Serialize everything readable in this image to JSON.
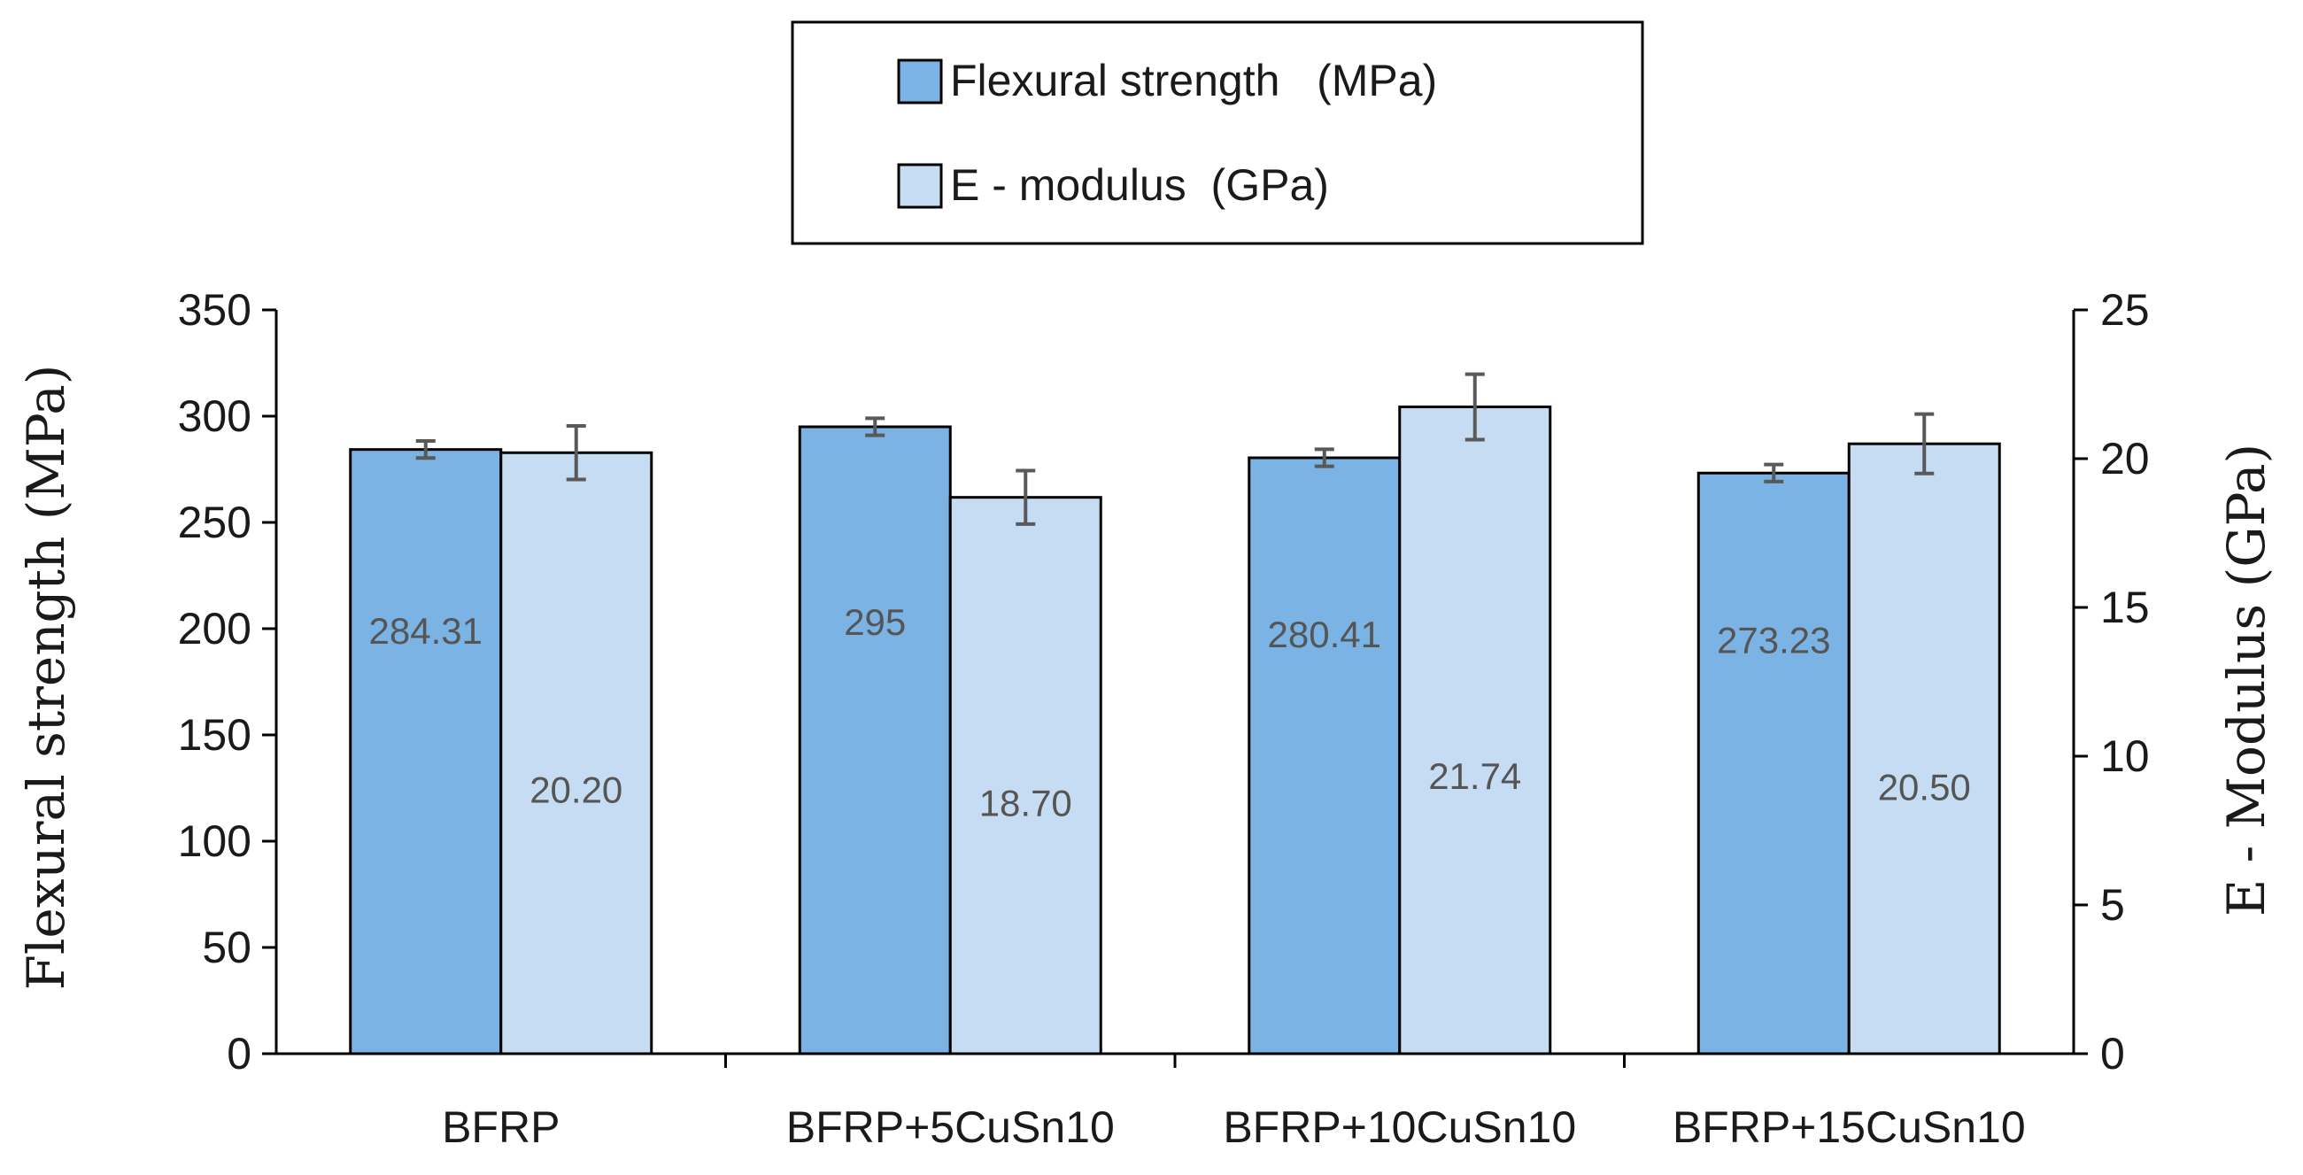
{
  "chart_data": {
    "type": "bar",
    "categories": [
      "BFRP",
      "BFRP+5CuSn10",
      "BFRP+10CuSn10",
      "BFRP+15CuSn10"
    ],
    "series": [
      {
        "name": "Flexural strength   (MPa)",
        "axis": "left",
        "color": "#7ab3e4",
        "values": [
          284.31,
          295,
          280.41,
          273.23
        ],
        "labels": [
          "284.31",
          "295",
          "280.41",
          "273.23"
        ],
        "errors": [
          4,
          4,
          4,
          4
        ]
      },
      {
        "name": "E - modulus  (GPa)",
        "axis": "right",
        "color": "#c5dcf2",
        "values": [
          20.2,
          18.7,
          21.74,
          20.5
        ],
        "labels": [
          "20.20",
          "18.70",
          "21.74",
          "20.50"
        ],
        "errors": [
          0.9,
          0.9,
          1.1,
          1.0
        ]
      }
    ],
    "y_left": {
      "label": "Flexural strength (MPa)",
      "lim": [
        0,
        350
      ],
      "ticks": [
        "0",
        "50",
        "100",
        "150",
        "200",
        "250",
        "300",
        "350"
      ]
    },
    "y_right": {
      "label": "E - Modulus (GPa)",
      "lim": [
        0,
        25
      ],
      "ticks": [
        "0",
        "5",
        "10",
        "15",
        "20",
        "25"
      ]
    },
    "legend_position": "top-center",
    "grid": false
  }
}
